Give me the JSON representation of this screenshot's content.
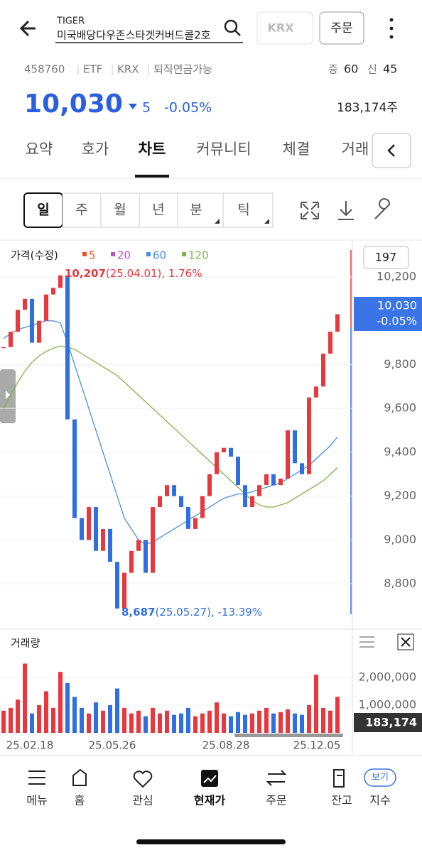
{
  "header": {
    "brand": "TIGER",
    "name": "미국배당다우존스타겟커버드콜2호",
    "exchange": "KRX",
    "order": "주문"
  },
  "info": {
    "code": "458760",
    "tags": [
      "ETF",
      "KRX",
      "퇴직연금가능"
    ],
    "margin_label": "증",
    "margin": 60,
    "credit_label": "신",
    "credit": 45
  },
  "price": {
    "current": "10,030",
    "change": "5",
    "change_rate": "-0.05%",
    "volume": "183,174주"
  },
  "tabs": [
    "요약",
    "호가",
    "차트",
    "커뮤니티",
    "체결",
    "거래"
  ],
  "periods": [
    "일",
    "주",
    "월",
    "년",
    "분",
    "틱"
  ],
  "chart_data": [
    {
      "type": "candlestick",
      "legend_title": "가격(수정)",
      "legend": [
        {
          "name": "5",
          "color": "#e8502e"
        },
        {
          "name": "20",
          "color": "#c24fd0"
        },
        {
          "name": "60",
          "color": "#4a8fdc"
        },
        {
          "name": "120",
          "color": "#7fb34a"
        }
      ],
      "up_color": "#e8383d",
      "down_color": "#2f6fe0",
      "values": [
        9880,
        9950,
        10050,
        10100,
        9900,
        10000,
        10120,
        10150,
        10207,
        9550,
        9100,
        9000,
        9150,
        8950,
        9050,
        8900,
        8687,
        8850,
        8950,
        9000,
        8850,
        9150,
        9200,
        9250,
        9200,
        9150,
        9050,
        9100,
        9200,
        9300,
        9400,
        9420,
        9380,
        9250,
        9150,
        9200,
        9250,
        9300,
        9250,
        9280,
        9500,
        9350,
        9300,
        9650,
        9700,
        9850,
        9950,
        10030
      ],
      "series": [
        {
          "name": "60",
          "color": "#4a8fdc",
          "values": [
            9920,
            9940,
            9960,
            9970,
            9980,
            9990,
            10000,
            10000,
            9990,
            9900,
            9800,
            9700,
            9600,
            9500,
            9400,
            9300,
            9200,
            9100,
            9050,
            9000,
            8980,
            8990,
            9010,
            9030,
            9050,
            9070,
            9090,
            9110,
            9130,
            9150,
            9170,
            9190,
            9200,
            9210,
            9210,
            9220,
            9230,
            9240,
            9250,
            9260,
            9280,
            9300,
            9320,
            9340,
            9370,
            9400,
            9430,
            9470
          ]
        },
        {
          "name": "120",
          "color": "#7fb34a",
          "values": [
            9600,
            9660,
            9720,
            9770,
            9810,
            9840,
            9860,
            9875,
            9885,
            9880,
            9870,
            9850,
            9830,
            9810,
            9790,
            9770,
            9750,
            9720,
            9690,
            9660,
            9630,
            9600,
            9570,
            9540,
            9510,
            9480,
            9450,
            9420,
            9390,
            9360,
            9330,
            9300,
            9270,
            9240,
            9210,
            9180,
            9160,
            9150,
            9150,
            9160,
            9170,
            9190,
            9210,
            9230,
            9250,
            9270,
            9300,
            9330
          ]
        }
      ],
      "ylim": [
        8596,
        10362
      ],
      "yticks": [
        {
          "value": 8800,
          "label": "8,800"
        },
        {
          "value": 9000,
          "label": "9,000"
        },
        {
          "value": 9200,
          "label": "9,200"
        },
        {
          "value": 9400,
          "label": "9,400"
        },
        {
          "value": 9600,
          "label": "9,600"
        },
        {
          "value": 9800,
          "label": "9,800"
        },
        {
          "value": 10200,
          "label": "10,200"
        }
      ],
      "count_label": "197",
      "current": {
        "value": 10030,
        "label": "10,030",
        "change": "-0.05%"
      },
      "high": {
        "value": 10207,
        "label": "10,207",
        "text": "(25.04.01), 1.76%"
      },
      "low": {
        "value": 8687,
        "label": "8,687",
        "text": "(25.05.27), -13.39%"
      },
      "x_labels": [
        "25.02.18",
        "25.05.26",
        "25.08.28",
        "25.12.05"
      ]
    },
    {
      "type": "bar",
      "title": "거래량",
      "values": [
        800000,
        900000,
        1200000,
        2500000,
        700000,
        1000000,
        1500000,
        900000,
        2200000,
        1800000,
        1300000,
        900000,
        700000,
        1100000,
        800000,
        1000000,
        1600000,
        900000,
        700000,
        800000,
        600000,
        900000,
        700000,
        800000,
        650000,
        700000,
        900000,
        600000,
        700000,
        800000,
        1100000,
        700000,
        600000,
        750000,
        650000,
        700000,
        800000,
        900000,
        700000,
        750000,
        850000,
        700000,
        650000,
        1000000,
        2100000,
        900000,
        800000,
        1300000
      ],
      "ylim": [
        0,
        3690000
      ],
      "yticks": [
        {
          "value": 1000000,
          "label": "1,000,000"
        },
        {
          "value": 2000000,
          "label": "2,000,000"
        }
      ],
      "current": {
        "value": 183174,
        "label": "183,174"
      }
    }
  ],
  "nav": [
    "메뉴",
    "홈",
    "관심",
    "현재가",
    "주문",
    "잔고",
    "지수"
  ],
  "nav_badge": "보기"
}
